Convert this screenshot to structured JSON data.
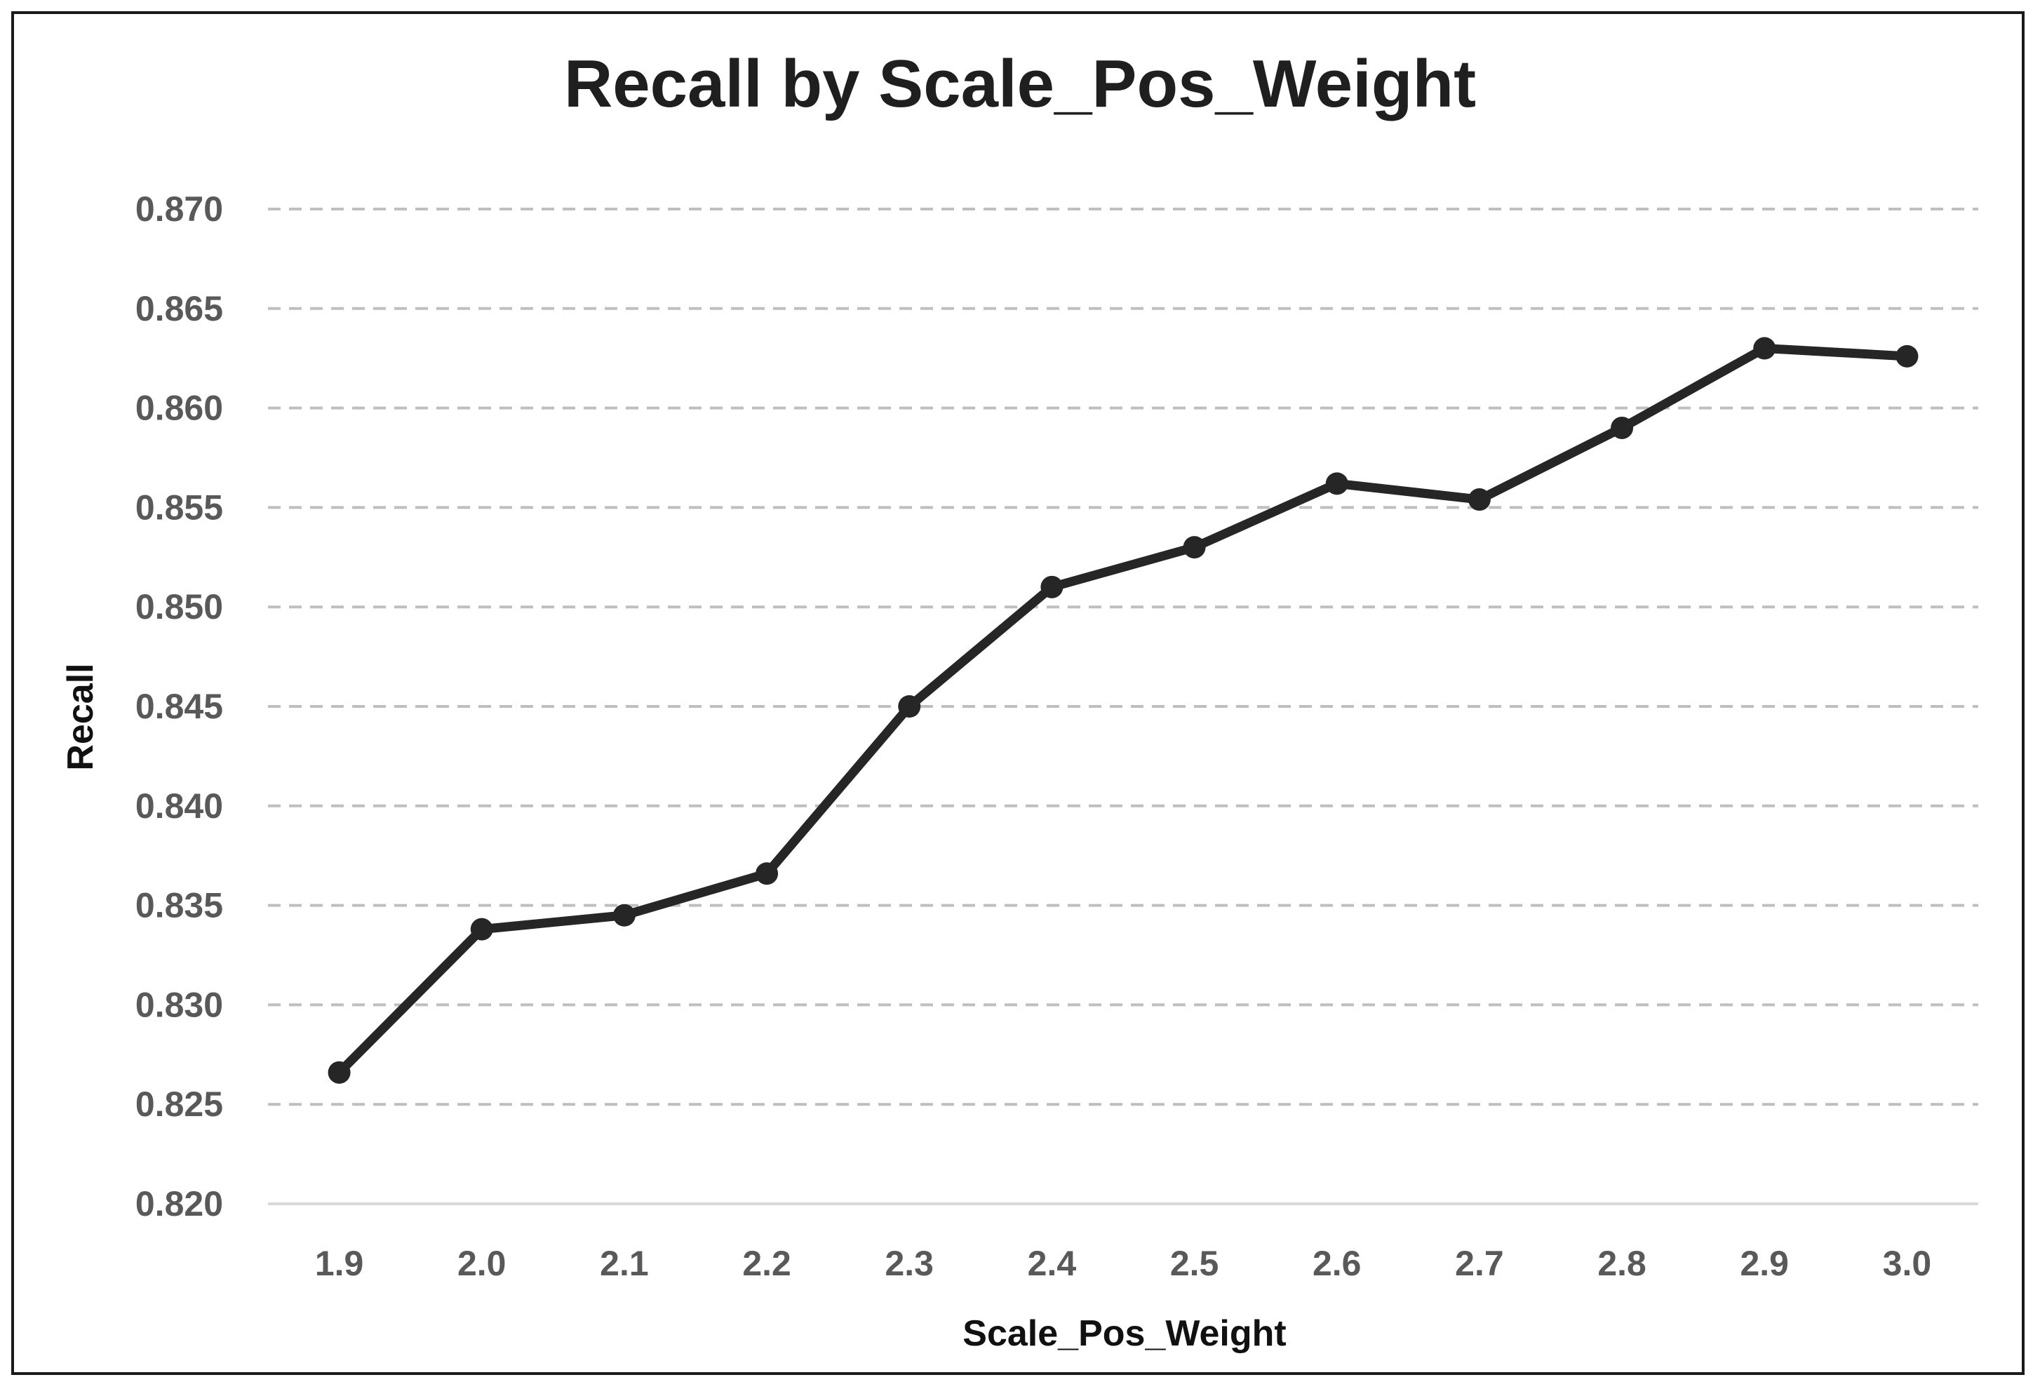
{
  "chart_data": {
    "type": "line",
    "title": "Recall by Scale_Pos_Weight",
    "xlabel": "Scale_Pos_Weight",
    "ylabel": "Recall",
    "categories": [
      "1.9",
      "2.0",
      "2.1",
      "2.2",
      "2.3",
      "2.4",
      "2.5",
      "2.6",
      "2.7",
      "2.8",
      "2.9",
      "3.0"
    ],
    "series": [
      {
        "values": [
          0.8266,
          0.8338,
          0.8345,
          0.8366,
          0.845,
          0.851,
          0.853,
          0.8562,
          0.8554,
          0.859,
          0.863,
          0.8626
        ]
      }
    ],
    "yticks": [
      "0.820",
      "0.825",
      "0.830",
      "0.835",
      "0.840",
      "0.845",
      "0.850",
      "0.855",
      "0.860",
      "0.865",
      "0.870"
    ],
    "ylim": [
      0.82,
      0.87
    ],
    "grid": "horizontal dashed",
    "legend": "none",
    "colors": {
      "line": "#262626",
      "grid": "#bfbfbf",
      "axis": "#d9d9d9",
      "tick_text": "#595959"
    }
  }
}
